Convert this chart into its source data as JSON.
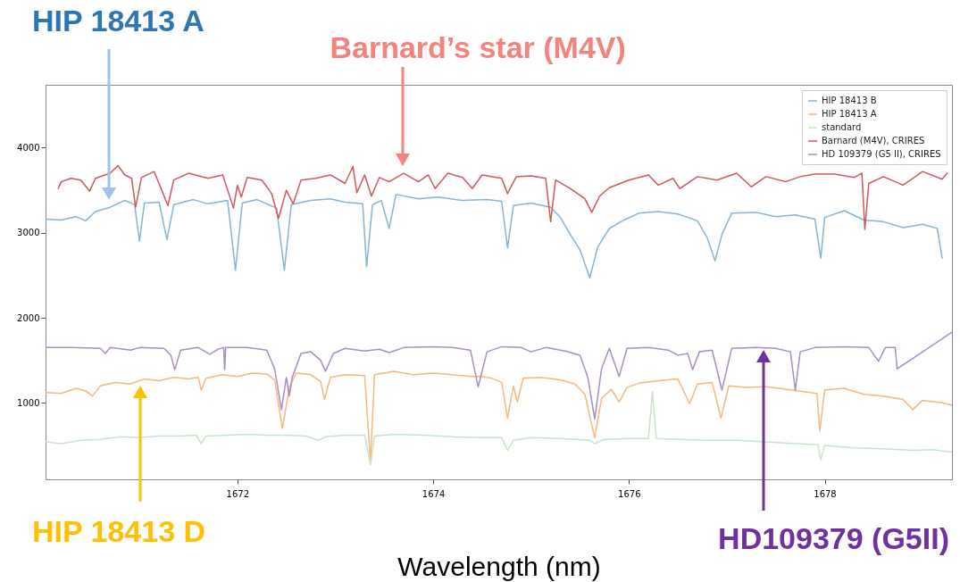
{
  "chart_data": {
    "type": "line",
    "xlabel": "Wavelength (nm)",
    "xlim": [
      1670.04,
      1679.3
    ],
    "xticks": [
      1672,
      1674,
      1676,
      1678
    ],
    "ylim": [
      100,
      4740
    ],
    "yticks": [
      1000,
      2000,
      3000,
      4000
    ],
    "grid": false,
    "legend": "top right",
    "line_style": "solid",
    "marker": "none",
    "annotations": [
      "HIP 18413 A",
      "Barnard’s star (M4V)",
      "HIP 18413 D",
      "HD109379 (G5II)"
    ],
    "series": [
      {
        "name": "HIP 18413 B",
        "color": "#86b4d6",
        "x": [
          1670.04,
          1670.2,
          1670.35,
          1670.45,
          1670.55,
          1670.7,
          1670.85,
          1670.95,
          1671.0,
          1671.05,
          1671.2,
          1671.28,
          1671.35,
          1671.55,
          1671.7,
          1671.9,
          1671.98,
          1672.05,
          1672.2,
          1672.32,
          1672.4,
          1672.48,
          1672.55,
          1672.75,
          1672.95,
          1673.1,
          1673.28,
          1673.32,
          1673.38,
          1673.47,
          1673.55,
          1673.62,
          1673.85,
          1674.05,
          1674.3,
          1674.55,
          1674.7,
          1674.76,
          1674.82,
          1675.0,
          1675.2,
          1675.3,
          1675.4,
          1675.5,
          1675.6,
          1675.68,
          1675.8,
          1675.95,
          1676.1,
          1676.3,
          1676.5,
          1676.7,
          1676.8,
          1676.88,
          1676.95,
          1677.05,
          1677.3,
          1677.5,
          1677.7,
          1677.9,
          1677.96,
          1678.0,
          1678.2,
          1678.4,
          1678.6,
          1678.8,
          1679.0,
          1679.15,
          1679.2
        ],
        "values": [
          3160,
          3150,
          3190,
          3140,
          3250,
          3300,
          3380,
          3330,
          2900,
          3350,
          3360,
          2920,
          3330,
          3390,
          3340,
          3380,
          2560,
          3350,
          3390,
          3330,
          3290,
          2560,
          3330,
          3380,
          3400,
          3360,
          3340,
          2600,
          3330,
          3380,
          3050,
          3450,
          3400,
          3420,
          3380,
          3390,
          3370,
          2820,
          3320,
          3350,
          3300,
          3180,
          2980,
          2800,
          2470,
          2830,
          3050,
          3150,
          3230,
          3250,
          3220,
          3140,
          2940,
          2670,
          2980,
          3230,
          3240,
          3190,
          3210,
          3160,
          2700,
          3180,
          3260,
          3150,
          3130,
          3060,
          3100,
          3050,
          2700
        ]
      },
      {
        "name": "HIP 18413 A",
        "color": "#f7b77d",
        "x": [
          1670.04,
          1670.2,
          1670.35,
          1670.45,
          1670.52,
          1670.6,
          1670.75,
          1670.9,
          1671.05,
          1671.2,
          1671.35,
          1671.5,
          1671.6,
          1671.63,
          1671.68,
          1671.85,
          1672.0,
          1672.15,
          1672.3,
          1672.38,
          1672.46,
          1672.53,
          1672.6,
          1672.75,
          1672.85,
          1672.89,
          1672.95,
          1673.1,
          1673.3,
          1673.36,
          1673.4,
          1673.6,
          1673.8,
          1674.0,
          1674.2,
          1674.4,
          1674.5,
          1674.6,
          1674.7,
          1674.76,
          1674.82,
          1674.86,
          1674.92,
          1675.1,
          1675.3,
          1675.45,
          1675.55,
          1675.65,
          1675.72,
          1675.82,
          1675.9,
          1675.98,
          1676.1,
          1676.3,
          1676.5,
          1676.62,
          1676.7,
          1676.85,
          1676.94,
          1677.02,
          1677.2,
          1677.4,
          1677.6,
          1677.8,
          1677.92,
          1677.95,
          1678.0,
          1678.2,
          1678.4,
          1678.6,
          1678.8,
          1678.9,
          1679.0,
          1679.2,
          1679.3
        ],
        "values": [
          1120,
          1110,
          1170,
          1140,
          1080,
          1200,
          1240,
          1220,
          1280,
          1260,
          1300,
          1280,
          1300,
          1150,
          1290,
          1330,
          1310,
          1350,
          1340,
          1270,
          700,
          1180,
          1350,
          1330,
          1250,
          1040,
          1300,
          1330,
          1320,
          300,
          1330,
          1370,
          1330,
          1350,
          1330,
          1310,
          1310,
          1290,
          1240,
          820,
          1200,
          1010,
          1290,
          1300,
          1270,
          1220,
          1100,
          590,
          1050,
          1160,
          1010,
          1180,
          1230,
          1260,
          1280,
          990,
          1220,
          1240,
          820,
          1200,
          1180,
          1190,
          1160,
          1130,
          1110,
          670,
          1150,
          1170,
          1100,
          1080,
          1040,
          920,
          1030,
          1000,
          970
        ]
      },
      {
        "name": "standard",
        "color": "#c6e5c6",
        "x": [
          1670.04,
          1670.2,
          1670.4,
          1670.6,
          1670.8,
          1671.0,
          1671.2,
          1671.4,
          1671.58,
          1671.63,
          1671.68,
          1671.9,
          1672.1,
          1672.3,
          1672.5,
          1672.7,
          1672.83,
          1672.9,
          1673.1,
          1673.3,
          1673.36,
          1673.4,
          1673.6,
          1673.9,
          1674.2,
          1674.5,
          1674.7,
          1674.76,
          1674.82,
          1675.0,
          1675.3,
          1675.6,
          1675.65,
          1675.75,
          1676.0,
          1676.2,
          1676.24,
          1676.28,
          1676.5,
          1676.8,
          1677.1,
          1677.4,
          1677.7,
          1677.93,
          1677.96,
          1678.0,
          1678.3,
          1678.6,
          1678.9,
          1679.1,
          1679.3
        ],
        "values": [
          540,
          520,
          560,
          570,
          600,
          590,
          610,
          610,
          620,
          520,
          610,
          620,
          630,
          620,
          620,
          610,
          560,
          600,
          620,
          620,
          270,
          610,
          630,
          620,
          600,
          590,
          590,
          440,
          560,
          590,
          580,
          560,
          520,
          570,
          580,
          580,
          1130,
          580,
          570,
          560,
          560,
          540,
          520,
          510,
          330,
          500,
          470,
          460,
          440,
          450,
          420
        ]
      },
      {
        "name": "Barnard (M4V), CRIRES",
        "color": "#d0575b",
        "x": [
          1670.17,
          1670.2,
          1670.3,
          1670.4,
          1670.49,
          1670.55,
          1670.7,
          1670.78,
          1670.85,
          1670.92,
          1670.96,
          1671.02,
          1671.15,
          1671.29,
          1671.35,
          1671.5,
          1671.7,
          1671.85,
          1671.96,
          1672.0,
          1672.04,
          1672.1,
          1672.25,
          1672.35,
          1672.42,
          1672.5,
          1672.57,
          1672.65,
          1672.8,
          1672.95,
          1673.1,
          1673.18,
          1673.22,
          1673.3,
          1673.37,
          1673.45,
          1673.55,
          1673.7,
          1673.85,
          1673.95,
          1674.02,
          1674.15,
          1674.3,
          1674.4,
          1674.5,
          1674.7,
          1674.76,
          1674.85,
          1675.0,
          1675.15,
          1675.2,
          1675.25,
          1675.4,
          1675.55,
          1675.62,
          1675.7,
          1675.8,
          1676.0,
          1676.2,
          1676.3,
          1676.45,
          1676.52,
          1676.7,
          1676.9,
          1677.1,
          1677.25,
          1677.4,
          1677.6,
          1677.75,
          1677.9,
          1678.1,
          1678.3,
          1678.38,
          1678.41,
          1678.45,
          1678.6,
          1678.8,
          1679.0,
          1679.2,
          1679.25
        ],
        "values": [
          3520,
          3600,
          3640,
          3620,
          3490,
          3640,
          3700,
          3790,
          3680,
          3640,
          3300,
          3650,
          3720,
          3320,
          3620,
          3700,
          3640,
          3680,
          3290,
          3560,
          3420,
          3650,
          3620,
          3460,
          3170,
          3500,
          3340,
          3620,
          3640,
          3680,
          3580,
          3780,
          3470,
          3680,
          3430,
          3650,
          3600,
          3700,
          3600,
          3680,
          3520,
          3700,
          3650,
          3520,
          3680,
          3640,
          3460,
          3660,
          3670,
          3640,
          3130,
          3620,
          3520,
          3400,
          3240,
          3430,
          3530,
          3620,
          3680,
          3560,
          3640,
          3520,
          3660,
          3620,
          3700,
          3540,
          3660,
          3600,
          3660,
          3690,
          3690,
          3650,
          3700,
          3040,
          3580,
          3660,
          3560,
          3720,
          3630,
          3700
        ]
      },
      {
        "name": "HD 109379 (G5 II), CRIRES",
        "color": "#a88cc6",
        "x": [
          1670.04,
          1670.3,
          1670.6,
          1670.65,
          1670.7,
          1670.91,
          1671.0,
          1671.25,
          1671.32,
          1671.36,
          1671.42,
          1671.6,
          1671.72,
          1671.8,
          1671.86,
          1671.87,
          1671.88,
          1672.1,
          1672.3,
          1672.38,
          1672.45,
          1672.5,
          1672.53,
          1672.56,
          1672.65,
          1672.75,
          1672.85,
          1672.9,
          1672.98,
          1673.1,
          1673.3,
          1673.45,
          1673.55,
          1673.7,
          1674.0,
          1674.2,
          1674.38,
          1674.46,
          1674.55,
          1674.7,
          1674.9,
          1675.0,
          1675.15,
          1675.35,
          1675.5,
          1675.58,
          1675.65,
          1675.72,
          1675.8,
          1675.9,
          1675.98,
          1676.2,
          1676.4,
          1676.5,
          1676.6,
          1676.65,
          1676.72,
          1676.85,
          1676.95,
          1677.05,
          1677.3,
          1677.5,
          1677.65,
          1677.7,
          1677.75,
          1677.9,
          1678.2,
          1678.45,
          1678.55,
          1678.62,
          1678.72,
          1678.74,
          1679.3
        ],
        "values": [
          1650,
          1650,
          1640,
          1580,
          1650,
          1620,
          1650,
          1640,
          1560,
          1390,
          1620,
          1650,
          1570,
          1630,
          1650,
          1390,
          1650,
          1650,
          1620,
          1400,
          920,
          1300,
          1080,
          1300,
          1580,
          1600,
          1500,
          1370,
          1580,
          1640,
          1610,
          1630,
          1590,
          1650,
          1660,
          1650,
          1620,
          1190,
          1600,
          1660,
          1650,
          1600,
          1650,
          1610,
          1560,
          1300,
          810,
          1400,
          1640,
          1310,
          1640,
          1650,
          1620,
          1560,
          1580,
          1390,
          1600,
          1620,
          1150,
          1640,
          1650,
          1640,
          1600,
          1150,
          1600,
          1650,
          1660,
          1650,
          1490,
          1650,
          1650,
          1400,
          1830
        ]
      }
    ]
  }
}
